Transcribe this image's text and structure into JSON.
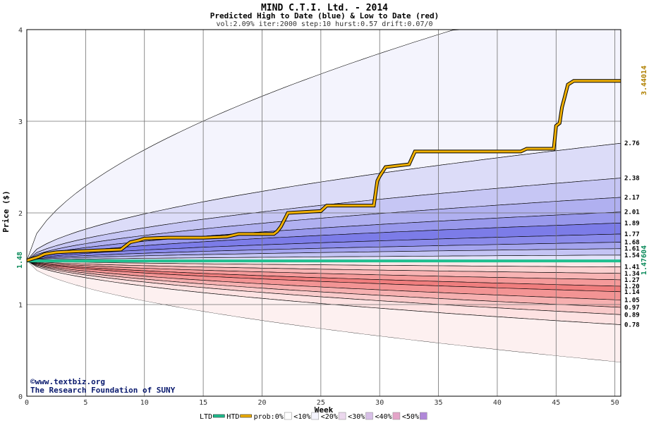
{
  "chart_data": {
    "type": "area",
    "title": "MIND C.T.I. Ltd. - 2014",
    "subtitle": "Predicted High to Date (blue) &  Low to Date (red)",
    "params": "vol:2.09% iter:2000 step:10 hurst:0.57 drift:0.07/0",
    "xlabel": "Week",
    "ylabel": "Price ($)",
    "xlim": [
      0,
      50.5
    ],
    "ylim": [
      0,
      4
    ],
    "x_ticks": [
      0,
      5,
      10,
      15,
      20,
      25,
      30,
      35,
      40,
      45,
      50
    ],
    "y_ticks": [
      0,
      1,
      2,
      3,
      4
    ],
    "grid": true,
    "start_price": 1.48,
    "start_label": "1.48",
    "ltd_current": 1.47604,
    "ltd_current_label": "1.47604",
    "htd_current": 3.44014,
    "htd_current_label": "3.44014",
    "right_labels": [
      "2.76",
      "2.38",
      "2.17",
      "2.01",
      "1.89",
      "1.77",
      "1.68",
      "1.61",
      "1.54",
      "1.41",
      "1.34",
      "1.27",
      "1.20",
      "1.14",
      "1.05",
      "0.97",
      "0.89",
      "0.78"
    ],
    "outer_band": {
      "upper_end": 4.52,
      "lower_end": 0.37
    },
    "high_bands": [
      {
        "name": "<10%",
        "end": 2.76,
        "color": "#dcdcf8"
      },
      {
        "name": "<20%",
        "end": 2.38,
        "color": "#c6c6f4"
      },
      {
        "name": "<30%",
        "end": 2.17,
        "color": "#b0b0f0"
      },
      {
        "name": "<40%",
        "end": 2.01,
        "color": "#9898ec"
      },
      {
        "name": "<50%",
        "end": 1.89,
        "color": "#7c7ce8"
      },
      {
        "name": "",
        "end": 1.77,
        "color": "#8a8aea"
      },
      {
        "name": "",
        "end": 1.68,
        "color": "#a4a4ee"
      },
      {
        "name": "",
        "end": 1.61,
        "color": "#c4c4f4"
      },
      {
        "name": "",
        "end": 1.54,
        "color": "#e2e2fa"
      }
    ],
    "low_bands": [
      {
        "name": "",
        "end": 1.41,
        "color": "#fde8e8"
      },
      {
        "name": "",
        "end": 1.34,
        "color": "#fbd0d0"
      },
      {
        "name": "",
        "end": 1.27,
        "color": "#f8b4b4"
      },
      {
        "name": "",
        "end": 1.2,
        "color": "#f59a9a"
      },
      {
        "name": "<50%",
        "end": 1.14,
        "color": "#f07e7e"
      },
      {
        "name": "<40%",
        "end": 1.05,
        "color": "#f39494"
      },
      {
        "name": "<30%",
        "end": 0.97,
        "color": "#f6b0b0"
      },
      {
        "name": "<20%",
        "end": 0.89,
        "color": "#f9caca"
      },
      {
        "name": "<10%",
        "end": 0.78,
        "color": "#fde2e2"
      }
    ],
    "htd_series": {
      "name": "HTD",
      "color": "#f0b000",
      "points": [
        [
          0,
          1.48
        ],
        [
          1,
          1.52
        ],
        [
          1.5,
          1.55
        ],
        [
          2.5,
          1.57
        ],
        [
          4,
          1.58
        ],
        [
          6,
          1.59
        ],
        [
          8,
          1.6
        ],
        [
          8.3,
          1.63
        ],
        [
          8.8,
          1.68
        ],
        [
          9.5,
          1.7
        ],
        [
          10,
          1.72
        ],
        [
          12,
          1.73
        ],
        [
          15,
          1.73
        ],
        [
          17,
          1.74
        ],
        [
          18,
          1.77
        ],
        [
          21,
          1.77
        ],
        [
          21.3,
          1.8
        ],
        [
          21.6,
          1.85
        ],
        [
          22,
          1.95
        ],
        [
          22.2,
          2.0
        ],
        [
          25,
          2.02
        ],
        [
          25.5,
          2.08
        ],
        [
          29.5,
          2.08
        ],
        [
          29.8,
          2.35
        ],
        [
          30,
          2.4
        ],
        [
          30.5,
          2.5
        ],
        [
          32.5,
          2.53
        ],
        [
          33,
          2.67
        ],
        [
          42,
          2.67
        ],
        [
          42.5,
          2.7
        ],
        [
          44.8,
          2.7
        ],
        [
          45,
          2.95
        ],
        [
          45.3,
          2.98
        ],
        [
          45.5,
          3.15
        ],
        [
          45.7,
          3.25
        ],
        [
          46,
          3.4
        ],
        [
          46.5,
          3.44
        ],
        [
          50.5,
          3.44
        ]
      ]
    },
    "ltd_series": {
      "name": "LTD",
      "color": "#20c090",
      "value": 1.47604
    },
    "legend": {
      "placement": "bottom",
      "items": [
        {
          "label": "LTD",
          "color": "#20c090",
          "kind": "line"
        },
        {
          "label": "HTD",
          "color": "#f0b000",
          "kind": "line"
        },
        {
          "label": "prob:0%",
          "color": "#ffffff",
          "kind": "swatch"
        },
        {
          "label": "<10%",
          "color": "#f4f4fd",
          "kind": "swatch"
        },
        {
          "label": "<20%",
          "color": "#ecd8ee",
          "kind": "swatch"
        },
        {
          "label": "<30%",
          "color": "#d8c0e8",
          "kind": "swatch"
        },
        {
          "label": "<40%",
          "color": "#e4a4c8",
          "kind": "swatch"
        },
        {
          "label": "<50%",
          "color": "#b088d8",
          "kind": "swatch"
        }
      ]
    },
    "credit_line1": "©www.textbiz.org",
    "credit_line2": "The Research Foundation of SUNY"
  }
}
